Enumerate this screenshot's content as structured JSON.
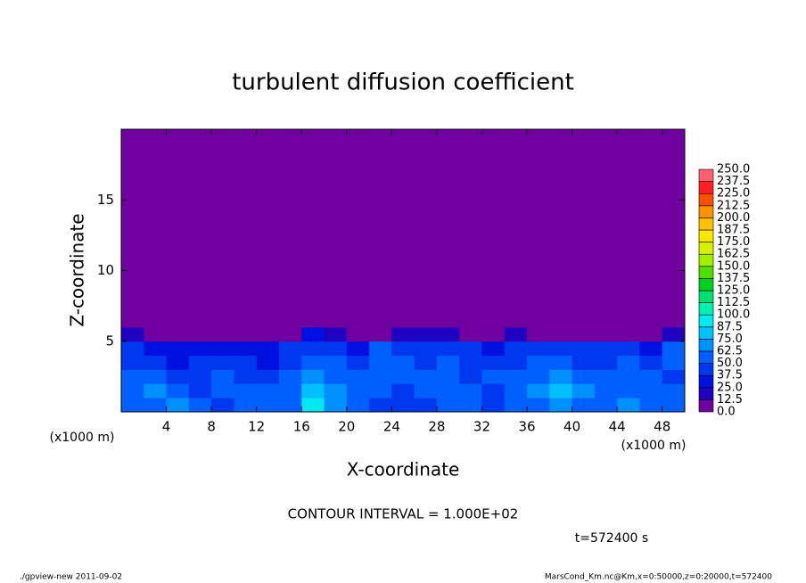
{
  "chart_data": {
    "type": "heatmap",
    "title": "turbulent diffusion coefficient",
    "x_label": "X-coordinate",
    "y_label": "Z-coordinate",
    "x_unit": "(x1000 m)",
    "y_unit": "(x1000 m)",
    "xlim": [
      0,
      50
    ],
    "ylim": [
      0,
      20
    ],
    "xticks": [
      4,
      8,
      12,
      16,
      20,
      24,
      28,
      32,
      36,
      40,
      44,
      48
    ],
    "yticks": [
      5,
      10,
      15
    ],
    "x_edges": [
      0,
      2,
      4,
      6,
      8,
      10,
      12,
      14,
      16,
      18,
      20,
      22,
      24,
      26,
      28,
      30,
      32,
      34,
      36,
      38,
      40,
      42,
      44,
      46,
      48,
      50
    ],
    "z_edges": [
      0,
      1,
      2,
      3,
      4,
      5,
      6,
      20
    ],
    "values": [
      [
        55,
        60,
        65,
        55,
        45,
        50,
        55,
        60,
        90,
        70,
        50,
        45,
        40,
        45,
        50,
        55,
        45,
        50,
        60,
        70,
        60,
        55,
        65,
        60,
        50
      ],
      [
        60,
        70,
        55,
        45,
        50,
        55,
        50,
        60,
        80,
        65,
        55,
        50,
        45,
        55,
        60,
        50,
        45,
        55,
        65,
        75,
        65,
        55,
        60,
        55,
        50
      ],
      [
        50,
        55,
        45,
        40,
        50,
        45,
        40,
        55,
        70,
        60,
        50,
        55,
        60,
        50,
        55,
        45,
        50,
        50,
        60,
        65,
        55,
        50,
        55,
        50,
        45
      ],
      [
        45,
        40,
        35,
        40,
        45,
        40,
        35,
        45,
        60,
        55,
        45,
        60,
        55,
        45,
        50,
        40,
        45,
        45,
        55,
        60,
        45,
        45,
        50,
        45,
        55
      ],
      [
        40,
        30,
        35,
        25,
        30,
        30,
        30,
        40,
        45,
        40,
        35,
        50,
        45,
        40,
        45,
        40,
        35,
        40,
        40,
        45,
        40,
        40,
        40,
        35,
        50
      ],
      [
        15,
        10,
        8,
        5,
        5,
        5,
        3,
        10,
        30,
        15,
        8,
        10,
        15,
        20,
        15,
        12,
        10,
        15,
        10,
        8,
        10,
        10,
        5,
        10,
        20
      ],
      [
        0,
        0,
        0,
        0,
        0,
        0,
        0,
        0,
        0,
        0,
        0,
        0,
        0,
        0,
        0,
        0,
        0,
        0,
        0,
        0,
        0,
        0,
        0,
        0,
        0
      ]
    ],
    "colorbar": {
      "ticks": [
        {
          "value": 0,
          "label": "0.0"
        },
        12.5,
        {
          "value": 25,
          "label": "25.0"
        },
        37.5,
        {
          "value": 50,
          "label": "50.0"
        },
        62.5,
        {
          "value": 75,
          "label": "75.0"
        },
        87.5,
        {
          "value": 100,
          "label": "100.0"
        },
        112.5,
        {
          "value": 125,
          "label": "125.0"
        },
        137.5,
        {
          "value": 150,
          "label": "150.0"
        },
        162.5,
        {
          "value": 175,
          "label": "175.0"
        },
        187.5,
        {
          "value": 200,
          "label": "200.0"
        },
        212.5,
        {
          "value": 225,
          "label": "225.0"
        },
        237.5,
        {
          "value": 250,
          "label": "250.0"
        }
      ],
      "colors": [
        "#7000a0",
        "#2000c0",
        "#0010e0",
        "#0038f0",
        "#0060ff",
        "#0090ff",
        "#00c0ff",
        "#00e8f0",
        "#00f0b0",
        "#00e070",
        "#00d020",
        "#50e000",
        "#a0f000",
        "#d8f000",
        "#f8e800",
        "#ffc000",
        "#ff9000",
        "#ff5000",
        "#ff2020",
        "#ff6070"
      ]
    },
    "contour_interval": "CONTOUR INTERVAL = 1.000E+02",
    "time_label": "t=572400 s",
    "footer_left": "./gpview-new  2011-09-02",
    "footer_right": "MarsCond_Km.nc@Km,x=0:50000,z=0:20000,t=572400"
  }
}
